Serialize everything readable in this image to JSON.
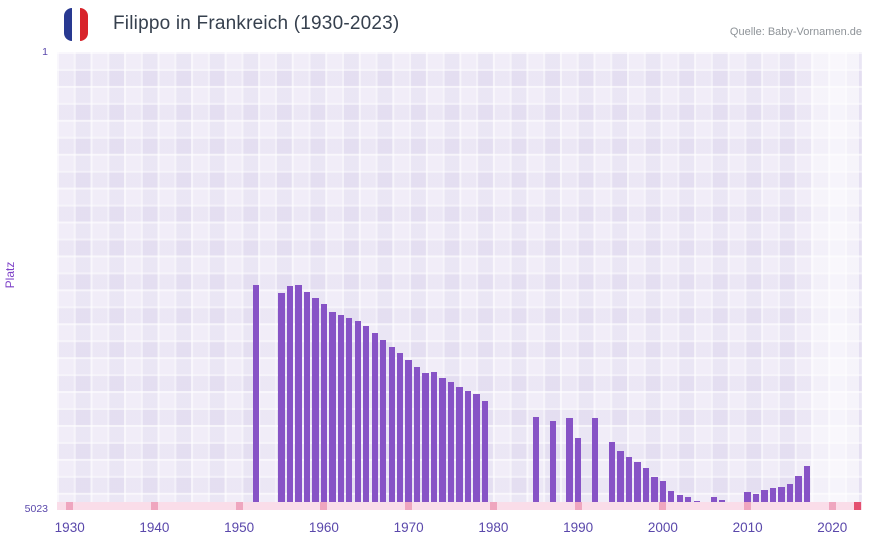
{
  "header": {
    "title": "Filippo in Frankreich (1930-2023)",
    "source": "Quelle: Baby-Vornamen.de"
  },
  "flag_icon": {
    "name": "flag-of-france",
    "stripe_colors": [
      "#283991",
      "#ffffff",
      "#d8232a"
    ]
  },
  "colors": {
    "bar": "#8753c6",
    "plot_background": "#ebe6f5",
    "grid_line": "#ffffff",
    "highlight_band": "rgba(255,255,255,0.55)",
    "axis_strip_base": "#fadde9",
    "axis_strip_tick": "#efa6bf",
    "axis_strip_edge": "#e4506f",
    "axis_text": "#5a48ab",
    "y_axis_title_text": "#7e41c8",
    "title_text": "#36404e",
    "source_text": "#8e9398"
  },
  "chart_data": {
    "type": "bar",
    "title": "Filippo in Frankreich (1930-2023)",
    "xlabel": "",
    "ylabel": "Platz",
    "y_axis": {
      "min": 1,
      "max": 5023,
      "inverted": true,
      "top_tick_label": "1",
      "bottom_tick_label": "5023"
    },
    "x_axis": {
      "start_year": 1929,
      "end_year": 2024,
      "tick_years": [
        1930,
        1940,
        1950,
        1960,
        1970,
        1980,
        1990,
        2000,
        2010,
        2020
      ]
    },
    "highlight_band": {
      "from_year": 2018,
      "to_year": 2023.6
    },
    "grid": true,
    "legend": "none",
    "series": [
      {
        "name": "Platz",
        "points": [
          {
            "year": 1952,
            "rank": 2555
          },
          {
            "year": 1955,
            "rank": 2640
          },
          {
            "year": 1956,
            "rank": 2570
          },
          {
            "year": 1957,
            "rank": 2560
          },
          {
            "year": 1958,
            "rank": 2630
          },
          {
            "year": 1959,
            "rank": 2695
          },
          {
            "year": 1960,
            "rank": 2760
          },
          {
            "year": 1961,
            "rank": 2855
          },
          {
            "year": 1962,
            "rank": 2885
          },
          {
            "year": 1963,
            "rank": 2915
          },
          {
            "year": 1964,
            "rank": 2950
          },
          {
            "year": 1965,
            "rank": 3010
          },
          {
            "year": 1966,
            "rank": 3085
          },
          {
            "year": 1967,
            "rank": 3155
          },
          {
            "year": 1968,
            "rank": 3230
          },
          {
            "year": 1969,
            "rank": 3300
          },
          {
            "year": 1970,
            "rank": 3375
          },
          {
            "year": 1971,
            "rank": 3450
          },
          {
            "year": 1972,
            "rank": 3525
          },
          {
            "year": 1973,
            "rank": 3505
          },
          {
            "year": 1974,
            "rank": 3575
          },
          {
            "year": 1975,
            "rank": 3615
          },
          {
            "year": 1976,
            "rank": 3670
          },
          {
            "year": 1977,
            "rank": 3715
          },
          {
            "year": 1978,
            "rank": 3755
          },
          {
            "year": 1979,
            "rank": 3830
          },
          {
            "year": 1985,
            "rank": 4005
          },
          {
            "year": 1987,
            "rank": 4050
          },
          {
            "year": 1989,
            "rank": 4015
          },
          {
            "year": 1990,
            "rank": 4230
          },
          {
            "year": 1992,
            "rank": 4010
          },
          {
            "year": 1994,
            "rank": 4280
          },
          {
            "year": 1995,
            "rank": 4380
          },
          {
            "year": 1996,
            "rank": 4445
          },
          {
            "year": 1997,
            "rank": 4500
          },
          {
            "year": 1998,
            "rank": 4560
          },
          {
            "year": 1999,
            "rank": 4660
          },
          {
            "year": 2000,
            "rank": 4705
          },
          {
            "year": 2001,
            "rank": 4810
          },
          {
            "year": 2002,
            "rank": 4855
          },
          {
            "year": 2003,
            "rank": 4885
          },
          {
            "year": 2004,
            "rank": 4925
          },
          {
            "year": 2006,
            "rank": 4875
          },
          {
            "year": 2007,
            "rank": 4915
          },
          {
            "year": 2008,
            "rank": 4965
          },
          {
            "year": 2009,
            "rank": 4940
          },
          {
            "year": 2010,
            "rank": 4830
          },
          {
            "year": 2011,
            "rank": 4845
          },
          {
            "year": 2012,
            "rank": 4805
          },
          {
            "year": 2013,
            "rank": 4785
          },
          {
            "year": 2014,
            "rank": 4765
          },
          {
            "year": 2015,
            "rank": 4735
          },
          {
            "year": 2016,
            "rank": 4650
          },
          {
            "year": 2017,
            "rank": 4540
          }
        ]
      }
    ]
  }
}
